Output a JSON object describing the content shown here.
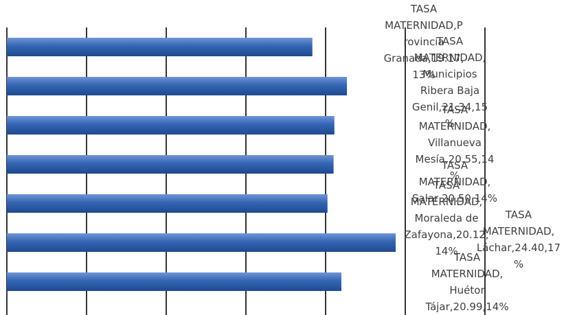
{
  "chart_data": {
    "type": "bar",
    "orientation": "horizontal",
    "series_name": "TASA MATERNIDAD",
    "categories": [
      "Provincia Granada",
      "Municipios Ribera Baja Genil",
      "Villanueva Mesía",
      "Salar",
      "Moraleda de Zafayona",
      "Láchar",
      "Huétor Tájar"
    ],
    "values": [
      19.17,
      21.34,
      20.55,
      20.5,
      20.12,
      24.4,
      20.99
    ],
    "data_labels": [
      [
        "TASA",
        "MATERNIDAD,P",
        "rovincia",
        "Granada,19.17,",
        "13%"
      ],
      [
        "TASA",
        "MATERNIDAD,",
        "Municipios",
        "Ribera Baja",
        "Genil,21.34,15",
        "%"
      ],
      [
        "TASA",
        "MATERNIDAD,",
        "Villanueva",
        "Mesía,20.55,14",
        "%"
      ],
      [
        "TASA",
        "MATERNIDAD,",
        "Salar,20.50,14%"
      ],
      [
        "TASA",
        "MATERNIDAD,",
        "Moraleda de",
        "Zafayona,20.12,",
        "14%"
      ],
      [
        "TASA",
        "MATERNIDAD,",
        "Láchar,24.40,17",
        "%"
      ],
      [
        "TASA",
        "MATERNIDAD,",
        "Huétor",
        "Tájar,20.99,14%"
      ]
    ],
    "xlim": [
      0,
      30
    ],
    "gridlines": "vertical",
    "legend": "none",
    "bar_color": "#3465b3"
  }
}
